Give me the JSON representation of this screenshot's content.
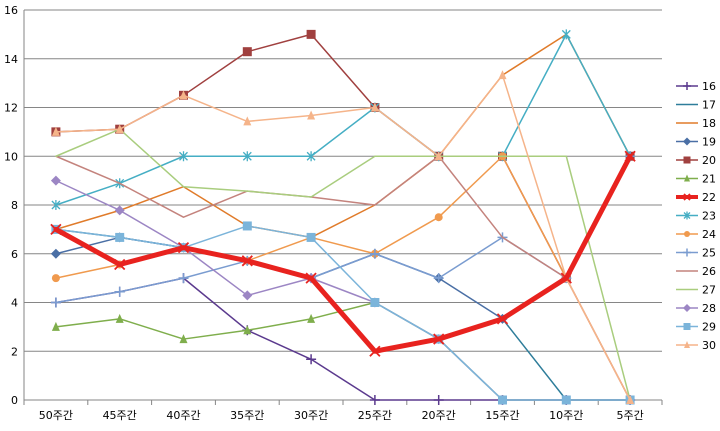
{
  "chart_data": {
    "type": "line",
    "categories": [
      "50주간",
      "45주간",
      "40주간",
      "35주간",
      "30주간",
      "25주간",
      "20주간",
      "15주간",
      "10주간",
      "5주간"
    ],
    "ylim": [
      0,
      16
    ],
    "yticks": [
      0,
      2,
      4,
      6,
      8,
      10,
      12,
      14,
      16
    ],
    "grid": "horizontal",
    "legend_position": "right",
    "series": [
      {
        "name": "16",
        "color": "#5B3A8E",
        "marker": "plus",
        "values": [
          4,
          4.44,
          5,
          2.86,
          1.67,
          0,
          0,
          0,
          0,
          0
        ]
      },
      {
        "name": "17",
        "color": "#2E7D9A",
        "marker": "none",
        "values": [
          7,
          6.67,
          6.25,
          5.71,
          5,
          2,
          2.5,
          3.33,
          0,
          0
        ]
      },
      {
        "name": "18",
        "color": "#E07B2A",
        "marker": "none",
        "values": [
          7,
          7.78,
          8.75,
          7.14,
          6.67,
          8,
          10,
          13.33,
          15,
          10
        ]
      },
      {
        "name": "19",
        "color": "#4A6FA5",
        "marker": "diamond",
        "values": [
          6,
          6.67,
          6.25,
          5.71,
          5,
          6,
          5,
          3.33,
          5,
          10
        ]
      },
      {
        "name": "20",
        "color": "#A0403F",
        "marker": "square",
        "values": [
          11,
          11.11,
          12.5,
          14.29,
          15,
          12,
          10,
          10,
          5,
          10
        ]
      },
      {
        "name": "21",
        "color": "#7FAE4C",
        "marker": "triangle",
        "values": [
          3,
          3.33,
          2.5,
          2.86,
          3.33,
          4,
          2.5,
          0,
          0,
          0
        ]
      },
      {
        "name": "22",
        "color": "#E8231F",
        "marker": "x",
        "thick": true,
        "values": [
          7,
          5.56,
          6.25,
          5.71,
          5,
          2,
          2.5,
          3.33,
          5,
          10
        ]
      },
      {
        "name": "23",
        "color": "#45AEC4",
        "marker": "star",
        "values": [
          8,
          8.89,
          10,
          10,
          10,
          12,
          10,
          10,
          15,
          10
        ]
      },
      {
        "name": "24",
        "color": "#F09A4E",
        "marker": "circle",
        "values": [
          5,
          5.56,
          6.25,
          5.71,
          6.67,
          6,
          7.5,
          10,
          5,
          0
        ]
      },
      {
        "name": "25",
        "color": "#7A9CD0",
        "marker": "plus",
        "values": [
          4,
          4.44,
          5,
          5.71,
          5,
          6,
          5,
          6.67,
          5,
          10
        ]
      },
      {
        "name": "26",
        "color": "#C4837D",
        "marker": "none",
        "values": [
          10,
          8.89,
          7.5,
          8.57,
          8.33,
          8,
          10,
          6.67,
          5,
          0
        ]
      },
      {
        "name": "27",
        "color": "#A9CD7E",
        "marker": "none",
        "values": [
          10,
          11.11,
          8.75,
          8.57,
          8.33,
          10,
          10,
          10,
          10,
          0
        ]
      },
      {
        "name": "28",
        "color": "#9C86C4",
        "marker": "diamond",
        "values": [
          9,
          7.78,
          6.25,
          4.29,
          5,
          4,
          2.5,
          0,
          0,
          0
        ]
      },
      {
        "name": "29",
        "color": "#7BB4DA",
        "marker": "square",
        "values": [
          7,
          6.67,
          6.25,
          7.14,
          6.67,
          4,
          2.5,
          0,
          0,
          0
        ]
      },
      {
        "name": "30",
        "color": "#F5B48A",
        "marker": "triangle",
        "values": [
          11,
          11.11,
          12.5,
          11.43,
          11.67,
          12,
          10,
          13.33,
          5,
          0
        ]
      }
    ]
  }
}
